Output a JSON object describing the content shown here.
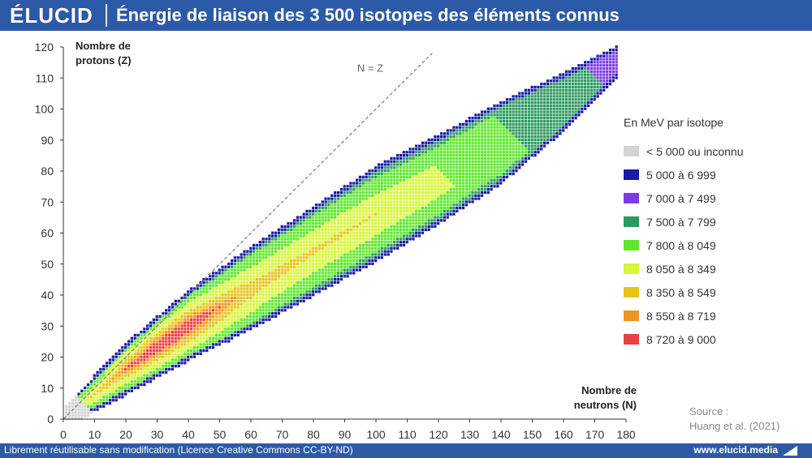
{
  "header": {
    "brand": "ÉLUCID",
    "title": "Énergie de liaison des 3 500 isotopes des éléments connus"
  },
  "footer": {
    "license": "Librement réutilisable sans modification (Licence Creative Commons CC-BY-ND)",
    "url": "www.elucid.media"
  },
  "source": {
    "line1": "Source :",
    "line2": "Huang et al. (2021)"
  },
  "colors": {
    "brand": "#2d5aa6"
  },
  "chart_data": {
    "type": "heatmap",
    "xlabel_lines": [
      "Nombre de",
      "neutrons (N)"
    ],
    "ylabel_lines": [
      "Nombre de",
      "protons (Z)"
    ],
    "xlim": [
      0,
      180
    ],
    "ylim": [
      0,
      120
    ],
    "xticks": [
      0,
      10,
      20,
      30,
      40,
      50,
      60,
      70,
      80,
      90,
      100,
      110,
      120,
      130,
      140,
      150,
      160,
      170,
      180
    ],
    "yticks": [
      0,
      10,
      20,
      30,
      40,
      50,
      60,
      70,
      80,
      90,
      100,
      110,
      120
    ],
    "reference_line": {
      "label": "N = Z",
      "from": [
        0,
        0
      ],
      "to": [
        118,
        118
      ]
    },
    "legend_title": "En MeV par isotope",
    "legend": [
      {
        "label": "< 5 000 ou inconnu",
        "color": "#d4d4d4"
      },
      {
        "label": "5 000 à 6 999",
        "color": "#1a1aa8"
      },
      {
        "label": "7 000 à 7 499",
        "color": "#7b3be0"
      },
      {
        "label": "7 500 à 7 799",
        "color": "#2a9a5e"
      },
      {
        "label": "7 800 à 8 049",
        "color": "#5ee82a"
      },
      {
        "label": "8 050 à 8 349",
        "color": "#d7f53a"
      },
      {
        "label": "8 350 à 8 549",
        "color": "#e8c41a"
      },
      {
        "label": "8 550 à 8 719",
        "color": "#f0941e"
      },
      {
        "label": "8 720 à 9 000",
        "color": "#e84040"
      }
    ],
    "valley_center": [
      [
        0,
        0
      ],
      [
        20,
        16
      ],
      [
        40,
        30
      ],
      [
        60,
        42
      ],
      [
        80,
        54
      ],
      [
        100,
        66
      ],
      [
        120,
        77
      ],
      [
        140,
        89
      ],
      [
        160,
        102
      ],
      [
        177,
        115
      ]
    ],
    "valley_halfwidth": [
      [
        0,
        3
      ],
      [
        20,
        8
      ],
      [
        40,
        11
      ],
      [
        60,
        13
      ],
      [
        80,
        14
      ],
      [
        100,
        15
      ],
      [
        120,
        14
      ],
      [
        140,
        13
      ],
      [
        160,
        9
      ],
      [
        177,
        5
      ]
    ],
    "n_range": [
      1,
      177
    ]
  }
}
